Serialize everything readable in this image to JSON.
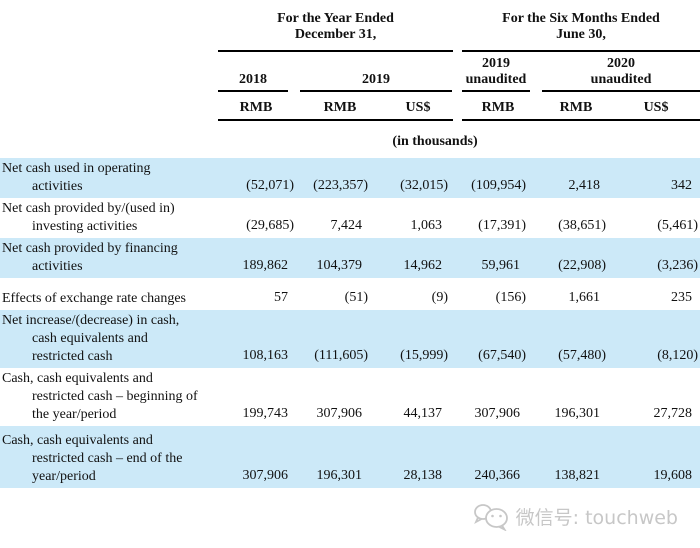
{
  "table": {
    "group_headers": [
      "For the Year Ended\nDecember 31,",
      "For the Six Months Ended\nJune 30,"
    ],
    "year_headers": [
      "2018",
      "2019",
      "2019\nunaudited",
      "2020\nunaudited"
    ],
    "currency_headers": [
      "RMB",
      "RMB",
      "US$",
      "RMB",
      "RMB",
      "US$"
    ],
    "units_note": "(in thousands)",
    "rows": [
      {
        "label": "Net cash used in operating\nactivities",
        "values": [
          "(52,071)",
          "(223,357)",
          "(32,015)",
          "(109,954)",
          "2,418",
          "342"
        ]
      },
      {
        "label": "Net cash provided by/(used in)\ninvesting activities",
        "values": [
          "(29,685)",
          "7,424",
          "1,063",
          "(17,391)",
          "(38,651)",
          "(5,461)"
        ]
      },
      {
        "label": "Net cash provided by financing\nactivities",
        "values": [
          "189,862",
          "104,379",
          "14,962",
          "59,961",
          "(22,908)",
          "(3,236)"
        ]
      },
      {
        "label": "Effects of exchange rate changes",
        "values": [
          "57",
          "(51)",
          "(9)",
          "(156)",
          "1,661",
          "235"
        ]
      },
      {
        "label": "Net increase/(decrease) in cash,\ncash equivalents and\nrestricted cash",
        "values": [
          "108,163",
          "(111,605)",
          "(15,999)",
          "(67,540)",
          "(57,480)",
          "(8,120)"
        ]
      },
      {
        "label": "Cash, cash equivalents and\nrestricted cash – beginning of\nthe year/period",
        "values": [
          "199,743",
          "307,906",
          "44,137",
          "307,906",
          "196,301",
          "27,728"
        ]
      },
      {
        "label": "Cash, cash equivalents and\nrestricted cash – end of the\nyear/period",
        "values": [
          "307,906",
          "196,301",
          "28,138",
          "240,366",
          "138,821",
          "19,608"
        ]
      }
    ]
  },
  "watermark": {
    "text": "微信号: touchweb",
    "icon": "wechat-icon"
  },
  "colors": {
    "row_highlight": "#cce9f8",
    "rule_black": "#000000",
    "watermark_gray": "#c7c7c7"
  }
}
